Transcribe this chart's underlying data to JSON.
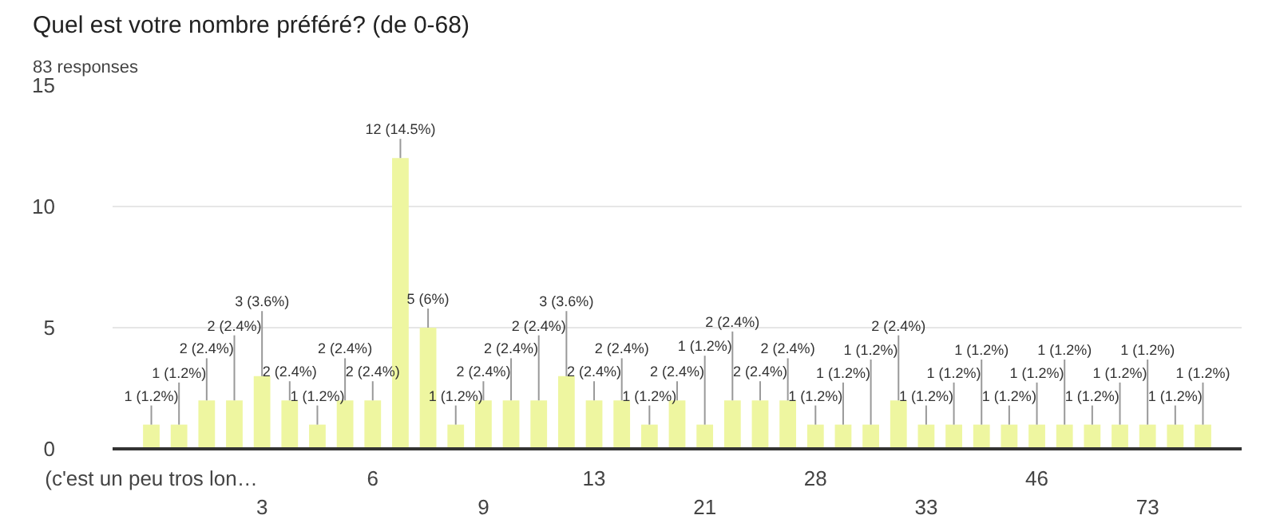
{
  "chart_data": {
    "type": "bar",
    "title": "Quel est votre nombre préféré? (de 0-68)",
    "subtitle": "83 responses",
    "categories": [
      "(c'est un peu tros lon…",
      null,
      null,
      null,
      "3",
      null,
      null,
      null,
      "6",
      null,
      null,
      null,
      "9",
      null,
      null,
      null,
      "13",
      null,
      null,
      null,
      "21",
      null,
      null,
      null,
      "28",
      null,
      null,
      null,
      "33",
      null,
      null,
      null,
      "46",
      null,
      null,
      null,
      "73",
      null,
      null
    ],
    "values": [
      1,
      1,
      2,
      2,
      3,
      2,
      1,
      2,
      2,
      12,
      5,
      1,
      2,
      2,
      2,
      3,
      2,
      2,
      1,
      2,
      1,
      2,
      2,
      2,
      1,
      1,
      1,
      2,
      1,
      1,
      1,
      1,
      1,
      1,
      1,
      1,
      1,
      1,
      1
    ],
    "value_labels": [
      "1 (1.2%)",
      "1 (1.2%)",
      "2 (2.4%)",
      "2 (2.4%)",
      "3 (3.6%)",
      "2 (2.4%)",
      "1 (1.2%)",
      "2 (2.4%)",
      "2 (2.4%)",
      "12 (14.5%)",
      "5 (6%)",
      "1 (1.2%)",
      "2 (2.4%)",
      "2 (2.4%)",
      "2 (2.4%)",
      "3 (3.6%)",
      "2 (2.4%)",
      "2 (2.4%)",
      "1 (1.2%)",
      "2 (2.4%)",
      "1 (1.2%)",
      "2 (2.4%)",
      "2 (2.4%)",
      "2 (2.4%)",
      "1 (1.2%)",
      "1 (1.2%)",
      "1 (1.2%)",
      "2 (2.4%)",
      "1 (1.2%)",
      "1 (1.2%)",
      "1 (1.2%)",
      "1 (1.2%)",
      "1 (1.2%)",
      "1 (1.2%)",
      "1 (1.2%)",
      "1 (1.2%)",
      "1 (1.2%)",
      "1 (1.2%)",
      "1 (1.2%)"
    ],
    "color": "#eef6a0",
    "ylim": [
      0,
      15
    ],
    "yticks": [
      0,
      5,
      10,
      15
    ],
    "grid": "y"
  }
}
